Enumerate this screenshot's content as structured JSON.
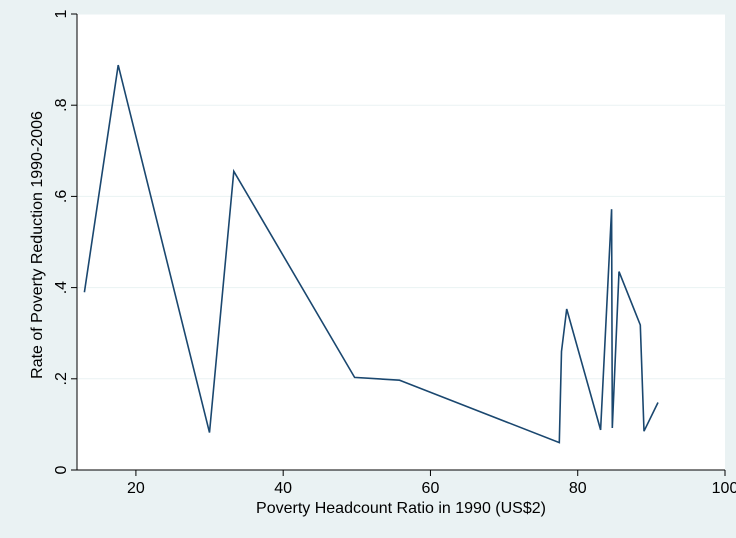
{
  "chart_data": {
    "type": "line",
    "title": "",
    "xlabel": "Poverty Headcount Ratio in 1990 (US$2)",
    "ylabel": "Rate of Poverty Reduction 1990-2006",
    "xlim": [
      12,
      100
    ],
    "ylim": [
      0,
      1
    ],
    "xticks": [
      20,
      40,
      60,
      80,
      100
    ],
    "xtick_labels": [
      "20",
      "40",
      "60",
      "80",
      "100"
    ],
    "yticks": [
      0,
      0.2,
      0.4,
      0.6,
      0.8,
      1
    ],
    "ytick_labels": [
      "0",
      ".2",
      ".4",
      ".6",
      ".8",
      "1"
    ],
    "grid": true,
    "legend": "none",
    "colors": {
      "outer_background": "#eaf2f3",
      "plot_background": "#ffffff",
      "line": "#1a476f",
      "grid": "#eaf2f3"
    },
    "series": [
      {
        "points": [
          [
            13.0,
            0.39
          ],
          [
            17.6,
            0.888
          ],
          [
            30.0,
            0.082
          ],
          [
            33.3,
            0.655
          ],
          [
            49.7,
            0.203
          ],
          [
            55.8,
            0.197
          ],
          [
            77.5,
            0.06
          ],
          [
            77.8,
            0.26
          ],
          [
            78.5,
            0.353
          ],
          [
            83.1,
            0.088
          ],
          [
            84.6,
            0.572
          ],
          [
            84.7,
            0.092
          ],
          [
            85.6,
            0.435
          ],
          [
            88.5,
            0.318
          ],
          [
            89.0,
            0.085
          ],
          [
            90.9,
            0.148
          ]
        ]
      }
    ]
  }
}
